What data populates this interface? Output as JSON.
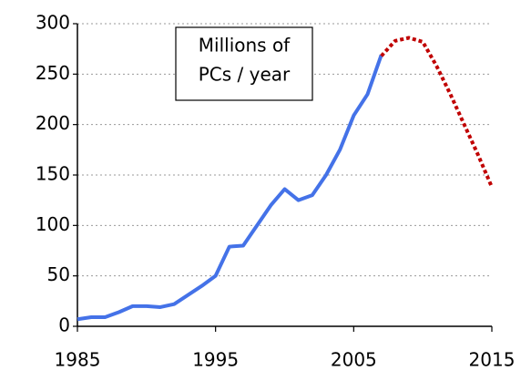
{
  "chart_data": {
    "type": "line",
    "annotation": [
      "Millions of",
      "PCs / year"
    ],
    "x": [
      1985,
      1986,
      1987,
      1988,
      1989,
      1990,
      1991,
      1992,
      1993,
      1994,
      1995,
      1996,
      1997,
      1998,
      1999,
      2000,
      2001,
      2002,
      2003,
      2004,
      2005,
      2006,
      2007,
      2008,
      2009,
      2010,
      2011,
      2012,
      2013,
      2014,
      2015
    ],
    "series": [
      {
        "color": "#4472e8",
        "dash": false,
        "values": [
          7,
          9,
          9,
          14,
          20,
          20,
          19,
          22,
          31,
          40,
          50,
          79,
          80,
          100,
          120,
          136,
          125,
          130,
          150,
          175,
          209,
          230,
          269,
          null,
          null,
          null,
          null,
          null,
          null,
          null,
          null
        ]
      },
      {
        "color": "#c00000",
        "dash": true,
        "values": [
          null,
          null,
          null,
          null,
          null,
          null,
          null,
          null,
          null,
          null,
          null,
          null,
          null,
          null,
          null,
          null,
          null,
          null,
          null,
          null,
          null,
          null,
          268,
          283,
          286,
          282,
          258,
          230,
          200,
          170,
          138
        ]
      }
    ],
    "xlim": [
      1985,
      2015
    ],
    "xticks": [
      1985,
      1995,
      2005,
      2015
    ],
    "ylim": [
      0,
      300
    ],
    "yticks": [
      0,
      50,
      100,
      150,
      200,
      250,
      300
    ],
    "grid": true
  }
}
